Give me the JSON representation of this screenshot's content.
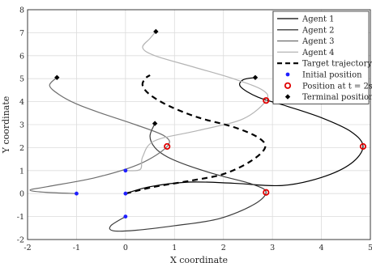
{
  "chart_data": {
    "type": "line",
    "xlabel": "X coordinate",
    "ylabel": "Y coordinate",
    "xlim": [
      -2,
      5
    ],
    "ylim": [
      -2,
      8
    ],
    "xticks": [
      -2,
      -1,
      0,
      1,
      2,
      3,
      4,
      5
    ],
    "yticks": [
      -2,
      -1,
      0,
      1,
      2,
      3,
      4,
      5,
      6,
      7,
      8
    ],
    "grid": true,
    "legend_position": "top-right",
    "series": [
      {
        "name": "Agent 1",
        "color": "#000000",
        "x": [
          0.0,
          0.5,
          1.3,
          2.2,
          3.2,
          4.0,
          4.6,
          4.85,
          4.6,
          4.0,
          3.3,
          2.7,
          2.35,
          2.4,
          2.65
        ],
        "y": [
          0.0,
          0.3,
          0.5,
          0.45,
          0.35,
          0.7,
          1.3,
          2.05,
          2.7,
          3.3,
          3.8,
          4.2,
          4.65,
          4.95,
          5.05
        ]
      },
      {
        "name": "Agent 2",
        "color": "#3c3c3c",
        "x": [
          0.0,
          -0.3,
          -0.25,
          0.2,
          1.0,
          1.9,
          2.6,
          2.87,
          2.6,
          1.9,
          1.3,
          0.85,
          0.6,
          0.5,
          0.6
        ],
        "y": [
          -1.0,
          -1.4,
          -1.62,
          -1.6,
          -1.4,
          -1.1,
          -0.5,
          0.05,
          0.4,
          0.8,
          1.2,
          1.6,
          2.0,
          2.5,
          3.05
        ]
      },
      {
        "name": "Agent 3",
        "color": "#6e6e6e",
        "x": [
          -1.0,
          -1.6,
          -1.95,
          -1.6,
          -0.6,
          0.3,
          0.85,
          0.8,
          0.2,
          -0.5,
          -1.0,
          -1.35,
          -1.55,
          -1.4
        ],
        "y": [
          0.0,
          0.05,
          0.15,
          0.3,
          0.7,
          1.3,
          2.05,
          2.5,
          3.0,
          3.5,
          3.9,
          4.3,
          4.7,
          5.05
        ]
      },
      {
        "name": "Agent 4",
        "color": "#b4b4b4",
        "x": [
          0.0,
          0.3,
          0.35,
          0.6,
          1.5,
          2.4,
          2.87,
          2.8,
          2.2,
          1.4,
          0.6,
          0.35,
          0.5,
          0.62
        ],
        "y": [
          1.0,
          1.05,
          1.6,
          2.3,
          2.75,
          3.25,
          4.05,
          4.5,
          5.0,
          5.5,
          6.0,
          6.35,
          6.75,
          7.05
        ]
      },
      {
        "name": "Target trajectory",
        "color": "#000000",
        "dashed": true,
        "x": [
          0.0,
          0.6,
          1.3,
          2.0,
          2.55,
          2.85,
          2.7,
          2.2,
          1.5,
          0.9,
          0.5,
          0.35,
          0.4,
          0.5
        ],
        "y": [
          0.0,
          0.3,
          0.55,
          0.85,
          1.4,
          2.0,
          2.45,
          2.9,
          3.3,
          3.8,
          4.3,
          4.7,
          5.0,
          5.15
        ]
      }
    ],
    "markers": [
      {
        "name": "Initial position",
        "color": "#1f1fff",
        "shape": "dot",
        "points": [
          [
            0,
            0
          ],
          [
            0,
            -1
          ],
          [
            -1,
            0
          ],
          [
            0,
            1
          ]
        ]
      },
      {
        "name": "Position at t = 2s",
        "color": "#e00000",
        "shape": "ring",
        "points": [
          [
            4.85,
            2.05
          ],
          [
            2.87,
            0.05
          ],
          [
            0.85,
            2.05
          ],
          [
            2.87,
            4.05
          ]
        ]
      },
      {
        "name": "Terminal position",
        "color": "#000000",
        "shape": "diamond",
        "points": [
          [
            2.65,
            5.05
          ],
          [
            0.6,
            3.05
          ],
          [
            -1.4,
            5.05
          ],
          [
            0.62,
            7.05
          ]
        ]
      }
    ],
    "legend": [
      {
        "label": "Agent 1",
        "kind": "line",
        "color": "#000000"
      },
      {
        "label": "Agent 2",
        "kind": "line",
        "color": "#3c3c3c"
      },
      {
        "label": "Agent 3",
        "kind": "line",
        "color": "#6e6e6e"
      },
      {
        "label": "Agent 4",
        "kind": "line",
        "color": "#b4b4b4"
      },
      {
        "label": "Target trajectory",
        "kind": "dashed",
        "color": "#000000"
      },
      {
        "label": "Initial position",
        "kind": "dot",
        "color": "#1f1fff"
      },
      {
        "label": "Position at t = 2s",
        "kind": "ring",
        "color": "#e00000"
      },
      {
        "label": "Terminal position",
        "kind": "diamond",
        "color": "#000000"
      }
    ]
  }
}
